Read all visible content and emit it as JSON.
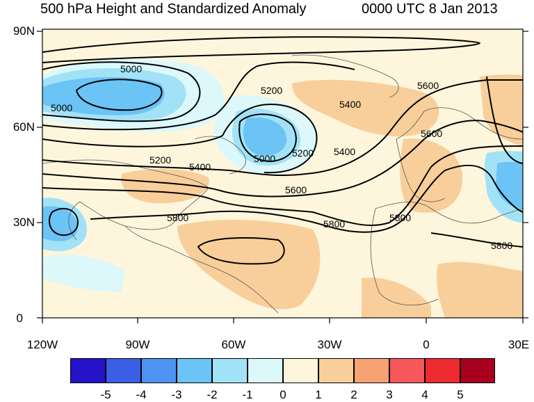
{
  "title_left": "500 hPa Height and Standardized Anomaly",
  "title_right": "0000 UTC 8 Jan 2013",
  "lat_labels": [
    "90N",
    "60N",
    "30N",
    "0"
  ],
  "lon_labels": [
    "120W",
    "90W",
    "60W",
    "30W",
    "0",
    "30E"
  ],
  "contour_labels": [
    "5000",
    "5000",
    "5200",
    "5400",
    "5200",
    "5000",
    "5200",
    "5400",
    "5600",
    "5400",
    "5600",
    "5800",
    "5800",
    "5600",
    "5800",
    "5800"
  ],
  "colorbar": {
    "colors": [
      "#2413c8",
      "#3b5ee6",
      "#4d93f2",
      "#6cc3f5",
      "#a2e2f7",
      "#dcf8fb",
      "#fdf6dc",
      "#f8cf9a",
      "#f8a273",
      "#f6585a",
      "#ee2b30",
      "#a8001f"
    ],
    "labels": [
      "-5",
      "-4",
      "-3",
      "-2",
      "-1",
      "0",
      "1",
      "2",
      "3",
      "4",
      "5"
    ]
  },
  "colors": {
    "neutral": "#fdf6dc",
    "neg_light": "#dcf8fb",
    "neg_mid": "#a2e2f7",
    "neg_strong": "#6cc3f5",
    "pos_light": "#f8cf9a"
  }
}
